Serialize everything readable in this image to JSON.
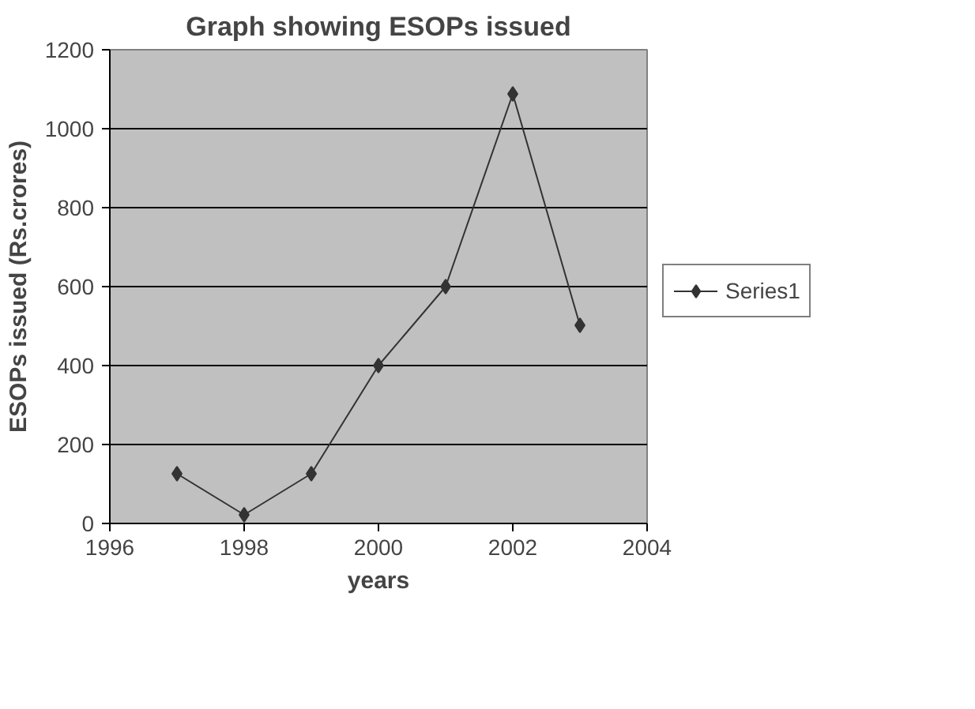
{
  "chart_data": {
    "type": "line",
    "title": "Graph showing ESOPs issued",
    "xlabel": "years",
    "ylabel": "ESOPs issued (Rs.crores)",
    "x": [
      1997,
      1998,
      1999,
      2000,
      2001,
      2002,
      2003
    ],
    "series": [
      {
        "name": "Series1",
        "color": "#333333",
        "values": [
          126,
          22,
          126,
          400,
          600,
          1088,
          502
        ]
      }
    ],
    "xlim": [
      1996,
      2004
    ],
    "xticks": [
      1996,
      1998,
      2000,
      2002,
      2004
    ],
    "ylim": [
      0,
      1200
    ],
    "yticks": [
      0,
      200,
      400,
      600,
      800,
      1000,
      1200
    ],
    "grid": "y",
    "legend": "right",
    "marker": "diamond",
    "line_style": "solid"
  }
}
